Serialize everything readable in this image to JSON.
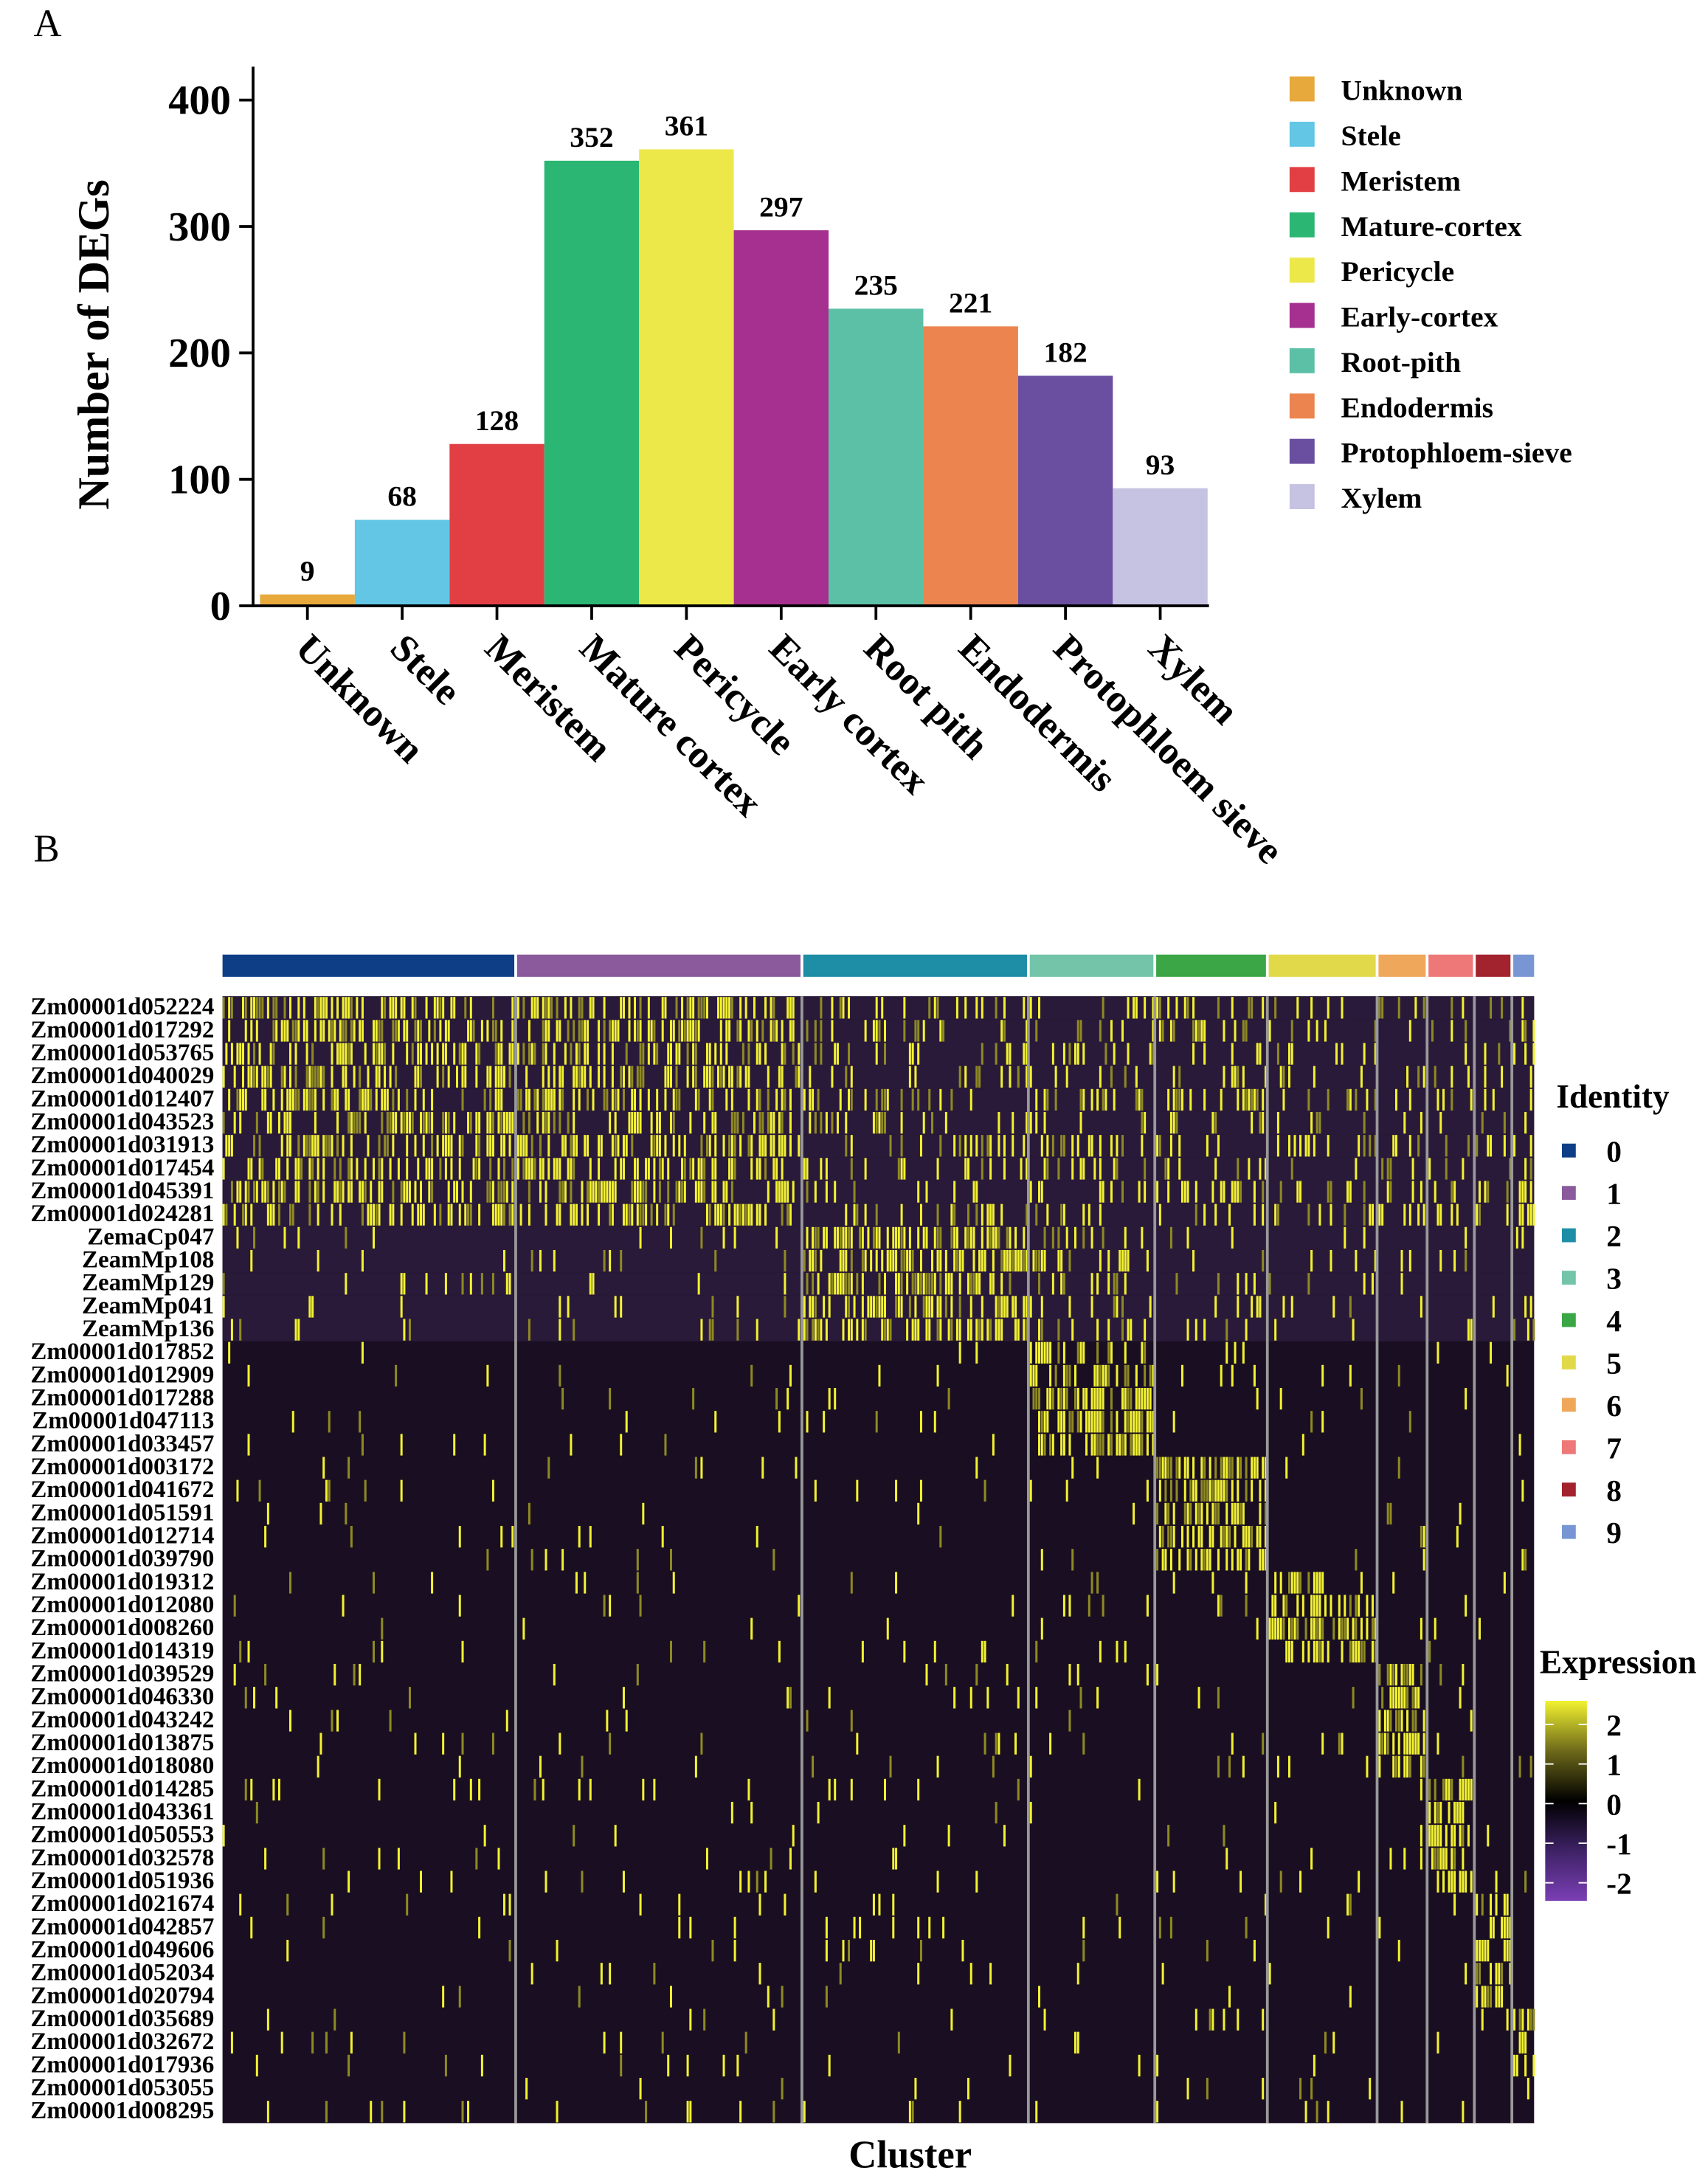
{
  "chart_data": [
    {
      "panel": "A",
      "type": "bar",
      "ylabel": "Number of DEGs",
      "xlabel": "",
      "ylim": [
        0,
        400
      ],
      "yticks": [
        0,
        100,
        200,
        300,
        400
      ],
      "categories": [
        "Unknown",
        "Stele",
        "Meristem",
        "Mature cortex",
        "Pericycle",
        "Early cortex",
        "Root pith",
        "Endodermis",
        "Protophloem sieve",
        "Xylem"
      ],
      "values": [
        9,
        68,
        128,
        352,
        361,
        297,
        235,
        221,
        182,
        93
      ],
      "colors": [
        "#E8A93C",
        "#62C6E4",
        "#E23F45",
        "#2BB673",
        "#EDE84A",
        "#A5308F",
        "#5BC0A6",
        "#EB844E",
        "#6A4FA0",
        "#C5C2E2"
      ],
      "legend": {
        "position": "right",
        "entries": [
          "Unknown",
          "Stele",
          "Meristem",
          "Mature-cortex",
          "Pericycle",
          "Early-cortex",
          "Root-pith",
          "Endodermis",
          "Protophloem-sieve",
          "Xylem"
        ]
      }
    },
    {
      "panel": "B",
      "type": "heatmap",
      "xlabel": "Cluster",
      "genes": [
        "Zm00001d052224",
        "Zm00001d017292",
        "Zm00001d053765",
        "Zm00001d040029",
        "Zm00001d012407",
        "Zm00001d043523",
        "Zm00001d031913",
        "Zm00001d017454",
        "Zm00001d045391",
        "Zm00001d024281",
        "ZemaCp047",
        "ZeamMp108",
        "ZeamMp129",
        "ZeamMp041",
        "ZeamMp136",
        "Zm00001d017852",
        "Zm00001d012909",
        "Zm00001d017288",
        "Zm00001d047113",
        "Zm00001d033457",
        "Zm00001d003172",
        "Zm00001d041672",
        "Zm00001d051591",
        "Zm00001d012714",
        "Zm00001d039790",
        "Zm00001d019312",
        "Zm00001d012080",
        "Zm00001d008260",
        "Zm00001d014319",
        "Zm00001d039529",
        "Zm00001d046330",
        "Zm00001d043242",
        "Zm00001d013875",
        "Zm00001d018080",
        "Zm00001d014285",
        "Zm00001d043361",
        "Zm00001d050553",
        "Zm00001d032578",
        "Zm00001d051936",
        "Zm00001d021674",
        "Zm00001d042857",
        "Zm00001d049606",
        "Zm00001d052034",
        "Zm00001d020794",
        "Zm00001d035689",
        "Zm00001d032672",
        "Zm00001d017936",
        "Zm00001d053055",
        "Zm00001d008295"
      ],
      "identity": {
        "title": "Identity",
        "clusters": [
          "0",
          "1",
          "2",
          "3",
          "4",
          "5",
          "6",
          "7",
          "8",
          "9"
        ],
        "colors": [
          "#0E3F86",
          "#8A5A9C",
          "#1E8DA6",
          "#73C4A8",
          "#3AA646",
          "#E2D94A",
          "#EFA85B",
          "#EE7777",
          "#A2222E",
          "#7896D3"
        ]
      },
      "expression": {
        "title": "Expression",
        "ticks": [
          "2",
          "1",
          "0",
          "-1",
          "-2"
        ],
        "range": [
          -2.5,
          2.5
        ],
        "colors": [
          "#7B3FB5",
          "#000000",
          "#F2F230"
        ]
      },
      "marker_cluster_per_gene": [
        0,
        0,
        0,
        0,
        0,
        1,
        1,
        1,
        1,
        1,
        2,
        2,
        2,
        2,
        2,
        3,
        3,
        3,
        3,
        3,
        4,
        4,
        4,
        4,
        4,
        5,
        5,
        5,
        5,
        6,
        6,
        6,
        6,
        6,
        7,
        7,
        7,
        7,
        7,
        8,
        8,
        8,
        8,
        8,
        9,
        9,
        9,
        -1,
        -1
      ]
    }
  ],
  "panel_labels": [
    "A",
    "B"
  ]
}
